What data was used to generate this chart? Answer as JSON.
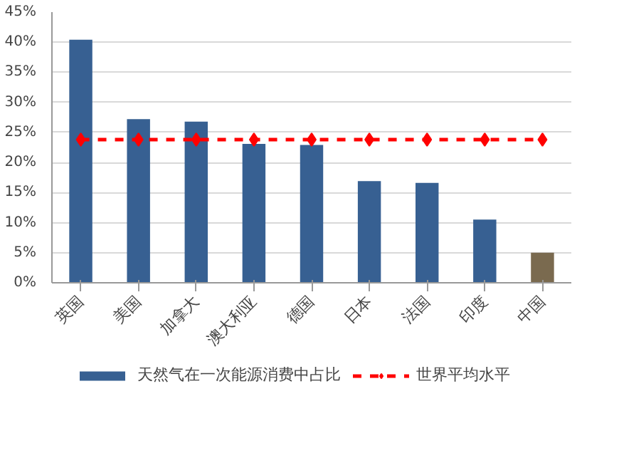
{
  "chart_data": {
    "type": "bar",
    "categories": [
      "英国",
      "美国",
      "加拿大",
      "澳大利亚",
      "德国",
      "日本",
      "法国",
      "印度",
      "中国"
    ],
    "series": [
      {
        "name": "天然气在一次能源消费中占比",
        "color": "#376092",
        "colors": [
          "#376092",
          "#376092",
          "#376092",
          "#376092",
          "#376092",
          "#376092",
          "#376092",
          "#376092",
          "#7a6a4f"
        ],
        "values": [
          40.4,
          27.2,
          26.8,
          23.1,
          22.9,
          16.9,
          16.6,
          10.5,
          5.0
        ]
      },
      {
        "name": "世界平均水平",
        "type": "line",
        "color": "#ff0000",
        "marker": "diamond",
        "line_style": "dashed",
        "values": [
          23.8,
          23.8,
          23.8,
          23.8,
          23.8,
          23.8,
          23.8,
          23.8,
          23.8
        ]
      }
    ],
    "ylim": [
      0,
      45
    ],
    "yticks": [
      {
        "value": 0,
        "label": "0%"
      },
      {
        "value": 5,
        "label": "5%"
      },
      {
        "value": 10,
        "label": "10%"
      },
      {
        "value": 15,
        "label": "15%"
      },
      {
        "value": 20,
        "label": "20%"
      },
      {
        "value": 25,
        "label": "25%"
      },
      {
        "value": 30,
        "label": "30%"
      },
      {
        "value": 35,
        "label": "35%"
      },
      {
        "value": 40,
        "label": "40%"
      },
      {
        "value": 45,
        "label": "45%"
      }
    ],
    "grid": "y",
    "legend": "bottom"
  }
}
